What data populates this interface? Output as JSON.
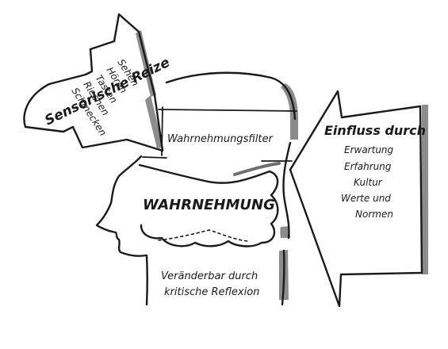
{
  "sensory_arrow": {
    "title": "Sensorische Reize",
    "items": [
      "Sehen",
      "Hören",
      "Tasten",
      "Riechen",
      "Schmecken"
    ]
  },
  "filter_label": "Wahrnehmungsfilter",
  "brain_label": "WAHRNEHMUNG",
  "influence_arrow": {
    "title": "Einfluss durch",
    "items": [
      "Erwartung",
      "Erfahrung",
      "Kultur",
      "Werte und",
      "Normen"
    ]
  },
  "reflection_label": {
    "line1": "Veränderbar durch",
    "line2": "kritische Reflexion"
  },
  "colors": {
    "ink": "#1a1a1a",
    "shadow": "#8c8c8c",
    "background": "#ffffff"
  }
}
